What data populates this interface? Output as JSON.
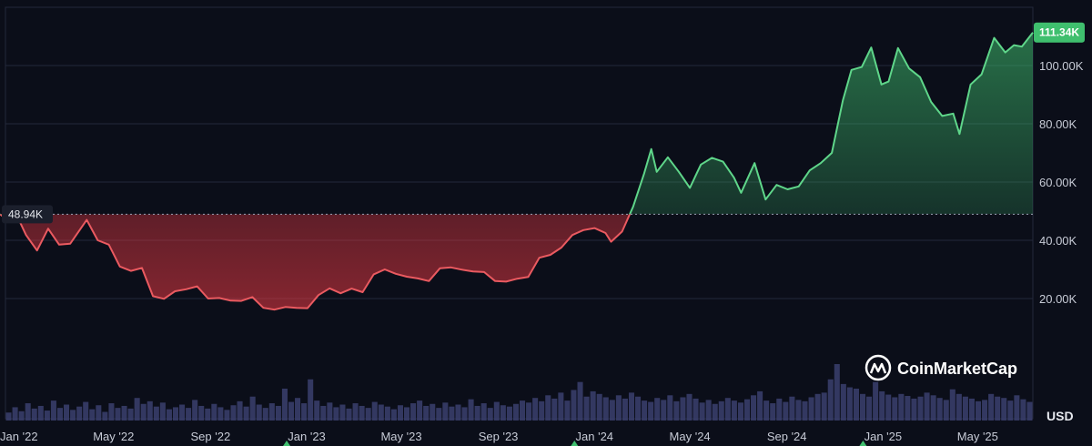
{
  "chart_data": {
    "type": "area",
    "currency": "USD",
    "watermark": "CoinMarketCap",
    "baseline_value": 48940,
    "baseline_label": "48.94K",
    "last_value": 111340,
    "last_label": "111.34K",
    "ylim": [
      0,
      120000
    ],
    "y_ticks": [
      {
        "value": 20000,
        "label": "20.00K"
      },
      {
        "value": 40000,
        "label": "40.00K"
      },
      {
        "value": 60000,
        "label": "60.00K"
      },
      {
        "value": 80000,
        "label": "80.00K"
      },
      {
        "value": 100000,
        "label": "100.00K"
      }
    ],
    "x_ticks": [
      {
        "date": "2022-01-01",
        "label": "Jan '22"
      },
      {
        "date": "2022-05-01",
        "label": "May '22"
      },
      {
        "date": "2022-09-01",
        "label": "Sep '22"
      },
      {
        "date": "2023-01-01",
        "label": "Jan '23"
      },
      {
        "date": "2023-05-01",
        "label": "May '23"
      },
      {
        "date": "2023-09-01",
        "label": "Sep '23"
      },
      {
        "date": "2024-01-01",
        "label": "Jan '24"
      },
      {
        "date": "2024-05-01",
        "label": "May '24"
      },
      {
        "date": "2024-09-01",
        "label": "Sep '24"
      },
      {
        "date": "2025-01-01",
        "label": "Jan '25"
      },
      {
        "date": "2025-05-01",
        "label": "May '25"
      }
    ],
    "x_range": [
      "2021-12-08",
      "2025-07-10"
    ],
    "series": [
      {
        "points": [
          [
            "2021-12-08",
            48940
          ],
          [
            "2021-12-20",
            46500
          ],
          [
            "2022-01-01",
            47000
          ],
          [
            "2022-01-10",
            41800
          ],
          [
            "2022-01-24",
            36500
          ],
          [
            "2022-02-07",
            44000
          ],
          [
            "2022-02-21",
            38500
          ],
          [
            "2022-03-07",
            38800
          ],
          [
            "2022-03-28",
            47000
          ],
          [
            "2022-04-11",
            40000
          ],
          [
            "2022-04-25",
            38500
          ],
          [
            "2022-05-09",
            31000
          ],
          [
            "2022-05-23",
            29500
          ],
          [
            "2022-06-06",
            30500
          ],
          [
            "2022-06-20",
            20800
          ],
          [
            "2022-07-04",
            19900
          ],
          [
            "2022-07-18",
            22500
          ],
          [
            "2022-08-01",
            23200
          ],
          [
            "2022-08-15",
            24200
          ],
          [
            "2022-08-29",
            20000
          ],
          [
            "2022-09-12",
            20200
          ],
          [
            "2022-09-26",
            19300
          ],
          [
            "2022-10-10",
            19200
          ],
          [
            "2022-10-24",
            20500
          ],
          [
            "2022-11-07",
            16800
          ],
          [
            "2022-11-21",
            16200
          ],
          [
            "2022-12-05",
            17100
          ],
          [
            "2022-12-19",
            16800
          ],
          [
            "2023-01-02",
            16700
          ],
          [
            "2023-01-16",
            21200
          ],
          [
            "2023-01-30",
            23500
          ],
          [
            "2023-02-13",
            21800
          ],
          [
            "2023-02-27",
            23400
          ],
          [
            "2023-03-13",
            22200
          ],
          [
            "2023-03-27",
            28300
          ],
          [
            "2023-04-10",
            30000
          ],
          [
            "2023-04-24",
            28500
          ],
          [
            "2023-05-08",
            27500
          ],
          [
            "2023-05-22",
            26900
          ],
          [
            "2023-06-05",
            26000
          ],
          [
            "2023-06-19",
            30400
          ],
          [
            "2023-07-03",
            30700
          ],
          [
            "2023-07-17",
            29900
          ],
          [
            "2023-07-31",
            29300
          ],
          [
            "2023-08-14",
            29100
          ],
          [
            "2023-08-28",
            26000
          ],
          [
            "2023-09-11",
            25800
          ],
          [
            "2023-09-25",
            26800
          ],
          [
            "2023-10-09",
            27400
          ],
          [
            "2023-10-23",
            34000
          ],
          [
            "2023-11-06",
            35000
          ],
          [
            "2023-11-20",
            37500
          ],
          [
            "2023-12-04",
            41800
          ],
          [
            "2023-12-18",
            43500
          ],
          [
            "2024-01-01",
            44200
          ],
          [
            "2024-01-15",
            42500
          ],
          [
            "2024-01-22",
            39500
          ],
          [
            "2024-02-05",
            43000
          ],
          [
            "2024-02-19",
            51500
          ],
          [
            "2024-03-04",
            63000
          ],
          [
            "2024-03-13",
            71300
          ],
          [
            "2024-03-20",
            63500
          ],
          [
            "2024-04-03",
            68500
          ],
          [
            "2024-04-17",
            63500
          ],
          [
            "2024-05-01",
            58000
          ],
          [
            "2024-05-15",
            66000
          ],
          [
            "2024-05-29",
            68300
          ],
          [
            "2024-06-12",
            67000
          ],
          [
            "2024-06-26",
            61500
          ],
          [
            "2024-07-05",
            56300
          ],
          [
            "2024-07-22",
            66500
          ],
          [
            "2024-08-05",
            54000
          ],
          [
            "2024-08-19",
            59000
          ],
          [
            "2024-09-02",
            57500
          ],
          [
            "2024-09-16",
            58500
          ],
          [
            "2024-09-30",
            64000
          ],
          [
            "2024-10-14",
            66500
          ],
          [
            "2024-10-28",
            70000
          ],
          [
            "2024-11-11",
            88000
          ],
          [
            "2024-11-22",
            98500
          ],
          [
            "2024-12-05",
            99500
          ],
          [
            "2024-12-17",
            106200
          ],
          [
            "2024-12-30",
            93500
          ],
          [
            "2025-01-08",
            94500
          ],
          [
            "2025-01-20",
            106000
          ],
          [
            "2025-02-03",
            99000
          ],
          [
            "2025-02-17",
            96000
          ],
          [
            "2025-03-03",
            87500
          ],
          [
            "2025-03-17",
            82700
          ],
          [
            "2025-03-31",
            83500
          ],
          [
            "2025-04-08",
            76500
          ],
          [
            "2025-04-22",
            93500
          ],
          [
            "2025-05-06",
            97000
          ],
          [
            "2025-05-22",
            109500
          ],
          [
            "2025-06-05",
            104500
          ],
          [
            "2025-06-16",
            107000
          ],
          [
            "2025-06-26",
            106500
          ],
          [
            "2025-07-10",
            111340
          ]
        ]
      }
    ],
    "volume": [
      12,
      20,
      14,
      26,
      18,
      22,
      15,
      30,
      19,
      24,
      16,
      21,
      28,
      17,
      23,
      13,
      26,
      19,
      22,
      18,
      34,
      25,
      29,
      21,
      27,
      17,
      20,
      24,
      19,
      31,
      22,
      18,
      25,
      20,
      16,
      23,
      29,
      21,
      36,
      24,
      19,
      26,
      22,
      48,
      28,
      34,
      26,
      62,
      30,
      22,
      27,
      20,
      24,
      18,
      26,
      22,
      19,
      28,
      24,
      21,
      17,
      23,
      20,
      26,
      30,
      22,
      25,
      19,
      27,
      21,
      24,
      20,
      32,
      22,
      26,
      19,
      28,
      23,
      21,
      25,
      30,
      27,
      34,
      29,
      38,
      33,
      42,
      30,
      46,
      58,
      36,
      44,
      40,
      35,
      31,
      38,
      33,
      42,
      36,
      30,
      28,
      34,
      31,
      38,
      29,
      35,
      40,
      33,
      27,
      31,
      25,
      29,
      34,
      30,
      27,
      32,
      38,
      44,
      30,
      26,
      33,
      28,
      36,
      31,
      29,
      35,
      40,
      42,
      62,
      85,
      55,
      50,
      48,
      40,
      36,
      58,
      44,
      39,
      35,
      40,
      37,
      33,
      36,
      42,
      38,
      34,
      31,
      47,
      40,
      36,
      33,
      29,
      31,
      40,
      36,
      34,
      30,
      38,
      32,
      28
    ]
  }
}
